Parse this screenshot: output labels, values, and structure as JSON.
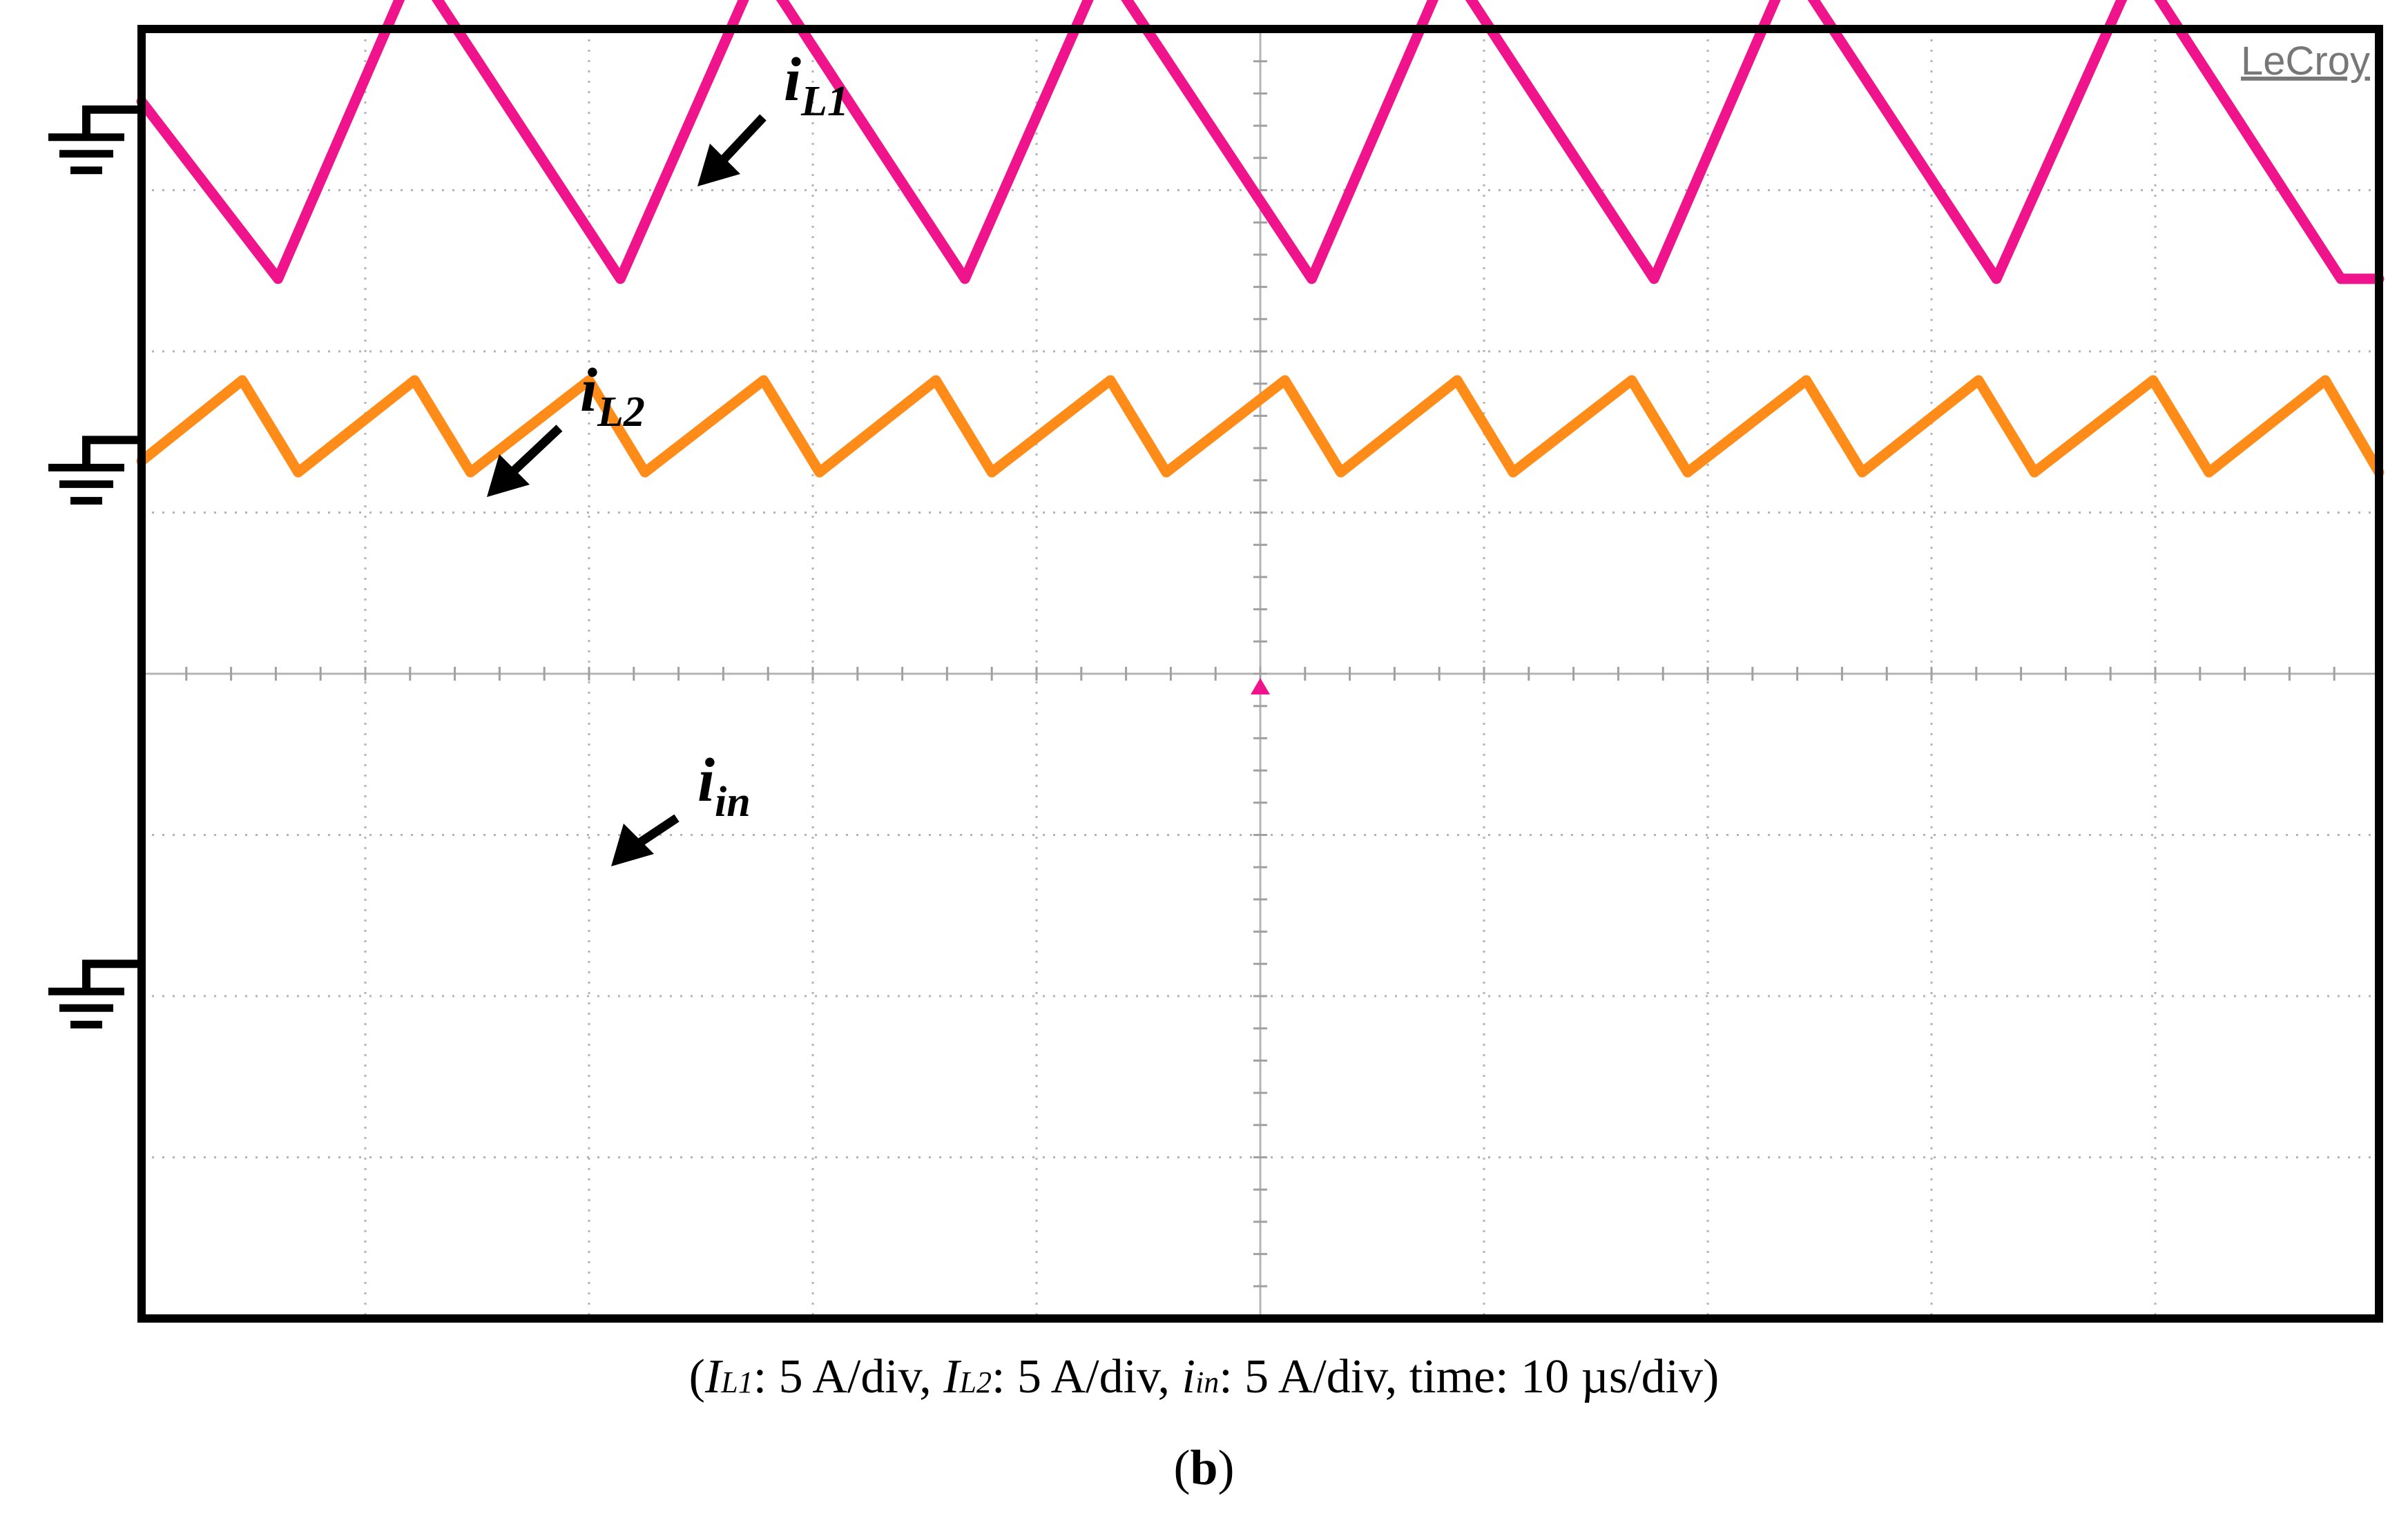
{
  "chart_data": {
    "type": "line",
    "brand": "LeCroy",
    "time_per_div_us": 10,
    "x_divisions": 10,
    "y_divisions": 8,
    "x_unit": "µs",
    "y_unit": "A",
    "grid": true,
    "series": [
      {
        "name": "iL1",
        "label_main": "i",
        "label_sub": "L1",
        "color": "#9B9B00",
        "amps_per_div": 5,
        "ground_div": 3.5,
        "x": [
          0,
          3.9,
          14.4,
          19.2,
          29.6,
          34.5,
          45.0,
          49.8,
          60.2,
          65.2,
          75.7,
          80.4,
          90.8,
          95.7,
          100
        ],
        "y": [
          1.3,
          2.95,
          0.95,
          2.95,
          0.95,
          2.95,
          0.95,
          2.95,
          0.95,
          2.95,
          0.95,
          2.95,
          0.95,
          2.95,
          2.3
        ]
      },
      {
        "name": "iL2",
        "label_main": "i",
        "label_sub": "L2",
        "color": "#F0148C",
        "amps_per_div": 5,
        "ground_div": 1.45,
        "x": [
          0,
          6.1,
          12.2,
          21.4,
          27.6,
          36.8,
          43.0,
          52.3,
          58.4,
          67.6,
          73.7,
          82.9,
          89.2,
          98.3,
          100
        ],
        "y": [
          2.1,
          1.0,
          2.95,
          1.0,
          2.95,
          1.0,
          2.95,
          1.0,
          2.95,
          1.0,
          2.95,
          1.0,
          2.95,
          1.0,
          1.0
        ]
      },
      {
        "name": "iin",
        "label_main": "i",
        "label_sub": "in",
        "color": "#FF8C19",
        "amps_per_div": 5,
        "ground_div": -1.8,
        "x": [
          0,
          4.5,
          7.0,
          12.2,
          14.7,
          20.0,
          22.5,
          27.8,
          30.3,
          35.5,
          38.0,
          43.3,
          45.8,
          51.1,
          53.6,
          58.8,
          61.3,
          66.6,
          69.1,
          74.4,
          76.9,
          82.1,
          84.6,
          89.9,
          92.4,
          97.6,
          100
        ],
        "y": [
          3.12,
          3.62,
          3.05,
          3.62,
          3.05,
          3.62,
          3.05,
          3.62,
          3.05,
          3.62,
          3.05,
          3.62,
          3.05,
          3.62,
          3.05,
          3.62,
          3.05,
          3.62,
          3.05,
          3.62,
          3.05,
          3.62,
          3.05,
          3.62,
          3.05,
          3.62,
          3.05
        ]
      }
    ],
    "caption": {
      "open": "(",
      "il1_main": "I",
      "il1_sub": "L1",
      "il1_rest": ": 5 A/div, ",
      "il2_main": "I",
      "il2_sub": "L2",
      "il2_rest": ": 5 A/div, ",
      "iin_main": "i",
      "iin_sub": "in",
      "iin_rest": ": 5 A/div, time: 10 µs/div)"
    },
    "panel_label": {
      "open": "(",
      "letter": "b",
      "close": ")"
    }
  }
}
